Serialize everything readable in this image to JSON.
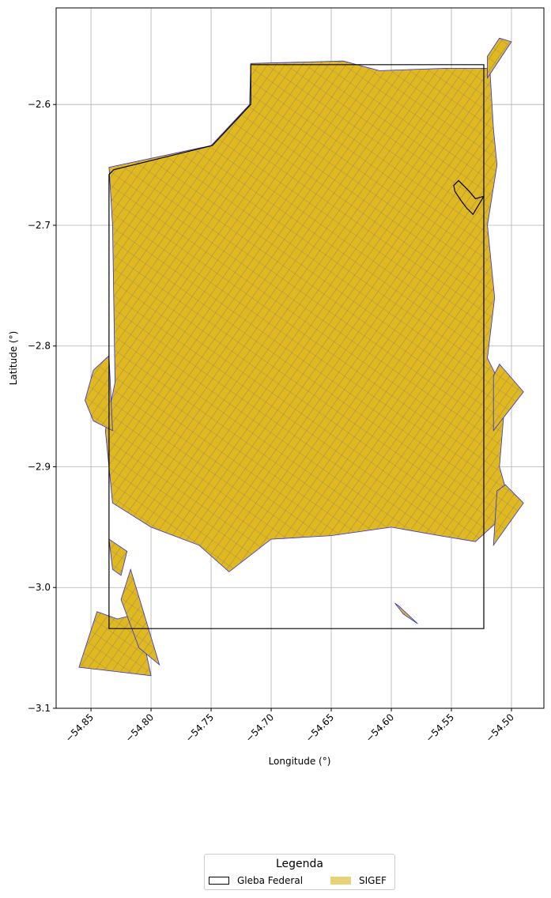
{
  "colors": {
    "gleba_edge": "#000000",
    "sigef_fill": "#DFB91F",
    "sigef_edge": "#2E2EE0",
    "grid": "#B0B0B0",
    "legend_sigef": "#E8D277"
  },
  "chart_data": {
    "type": "map",
    "xlabel": "Longitude (°)",
    "ylabel": "Latitude (°)",
    "xlim": [
      -54.879,
      -54.473
    ],
    "ylim": [
      -3.1,
      -2.52
    ],
    "x_ticks": [
      -54.85,
      -54.8,
      -54.75,
      -54.7,
      -54.65,
      -54.6,
      -54.55,
      -54.5
    ],
    "x_tick_labels": [
      "−54.85",
      "−54.80",
      "−54.75",
      "−54.70",
      "−54.65",
      "−54.60",
      "−54.55",
      "−54.50"
    ],
    "y_ticks": [
      -2.6,
      -2.7,
      -2.8,
      -2.9,
      -3.0,
      -3.1
    ],
    "y_tick_labels": [
      "−2.6",
      "−2.7",
      "−2.8",
      "−2.9",
      "−3.0",
      "−3.1"
    ],
    "grid": true,
    "gleba_federal_boundary": [
      [
        -54.835,
        -2.658
      ],
      [
        -54.831,
        -2.654
      ],
      [
        -54.749,
        -2.634
      ],
      [
        -54.717,
        -2.6
      ],
      [
        -54.717,
        -2.567
      ],
      [
        -54.523,
        -2.567
      ],
      [
        -54.523,
        -2.676
      ],
      [
        -54.532,
        -2.691
      ],
      [
        -54.537,
        -2.686
      ],
      [
        -54.541,
        -2.681
      ],
      [
        -54.547,
        -2.672
      ],
      [
        -54.548,
        -2.667
      ],
      [
        -54.544,
        -2.663
      ],
      [
        -54.535,
        -2.672
      ],
      [
        -54.53,
        -2.678
      ],
      [
        -54.523,
        -2.676
      ],
      [
        -54.523,
        -3.034
      ],
      [
        -54.835,
        -3.034
      ],
      [
        -54.835,
        -2.658
      ]
    ],
    "sigef_regions": [
      [
        [
          -54.835,
          -2.652
        ],
        [
          -54.75,
          -2.634
        ],
        [
          -54.718,
          -2.6
        ],
        [
          -54.717,
          -2.566
        ],
        [
          -54.64,
          -2.564
        ],
        [
          -54.61,
          -2.572
        ],
        [
          -54.555,
          -2.57
        ],
        [
          -54.518,
          -2.57
        ],
        [
          -54.515,
          -2.62
        ],
        [
          -54.512,
          -2.65
        ],
        [
          -54.52,
          -2.7
        ],
        [
          -54.514,
          -2.76
        ],
        [
          -54.52,
          -2.81
        ],
        [
          -54.505,
          -2.84
        ],
        [
          -54.51,
          -2.9
        ],
        [
          -54.5,
          -2.935
        ],
        [
          -54.53,
          -2.962
        ],
        [
          -54.56,
          -2.957
        ],
        [
          -54.6,
          -2.95
        ],
        [
          -54.65,
          -2.957
        ],
        [
          -54.7,
          -2.96
        ],
        [
          -54.735,
          -2.987
        ],
        [
          -54.76,
          -2.965
        ],
        [
          -54.8,
          -2.95
        ],
        [
          -54.832,
          -2.93
        ],
        [
          -54.838,
          -2.87
        ],
        [
          -54.83,
          -2.83
        ],
        [
          -54.832,
          -2.7
        ],
        [
          -54.835,
          -2.652
        ]
      ],
      [
        [
          -54.855,
          -2.845
        ],
        [
          -54.848,
          -2.82
        ],
        [
          -54.835,
          -2.808
        ],
        [
          -54.832,
          -2.87
        ],
        [
          -54.848,
          -2.862
        ],
        [
          -54.855,
          -2.845
        ]
      ],
      [
        [
          -54.835,
          -2.96
        ],
        [
          -54.82,
          -2.97
        ],
        [
          -54.825,
          -2.99
        ],
        [
          -54.832,
          -2.985
        ],
        [
          -54.835,
          -2.96
        ]
      ],
      [
        [
          -54.828,
          -3.026
        ],
        [
          -54.812,
          -3.022
        ],
        [
          -54.805,
          -3.05
        ],
        [
          -54.8,
          -3.073
        ],
        [
          -54.86,
          -3.066
        ],
        [
          -54.845,
          -3.02
        ],
        [
          -54.828,
          -3.026
        ]
      ],
      [
        [
          -54.817,
          -2.985
        ],
        [
          -54.793,
          -3.064
        ],
        [
          -54.81,
          -3.05
        ],
        [
          -54.825,
          -3.01
        ],
        [
          -54.817,
          -2.985
        ]
      ],
      [
        [
          -54.597,
          -3.013
        ],
        [
          -54.59,
          -3.022
        ],
        [
          -54.578,
          -3.03
        ],
        [
          -54.594,
          -3.015
        ],
        [
          -54.597,
          -3.013
        ]
      ],
      [
        [
          -54.515,
          -2.825
        ],
        [
          -54.515,
          -2.87
        ],
        [
          -54.49,
          -2.838
        ],
        [
          -54.51,
          -2.815
        ],
        [
          -54.515,
          -2.825
        ]
      ],
      [
        [
          -54.512,
          -2.92
        ],
        [
          -54.515,
          -2.965
        ],
        [
          -54.49,
          -2.93
        ],
        [
          -54.505,
          -2.915
        ],
        [
          -54.512,
          -2.92
        ]
      ],
      [
        [
          -54.52,
          -2.578
        ],
        [
          -54.5,
          -2.548
        ],
        [
          -54.51,
          -2.545
        ],
        [
          -54.52,
          -2.56
        ],
        [
          -54.52,
          -2.578
        ]
      ]
    ],
    "legend": {
      "title": "Legenda",
      "location": "below-center",
      "entries": [
        "Gleba Federal",
        "SIGEF"
      ]
    }
  }
}
